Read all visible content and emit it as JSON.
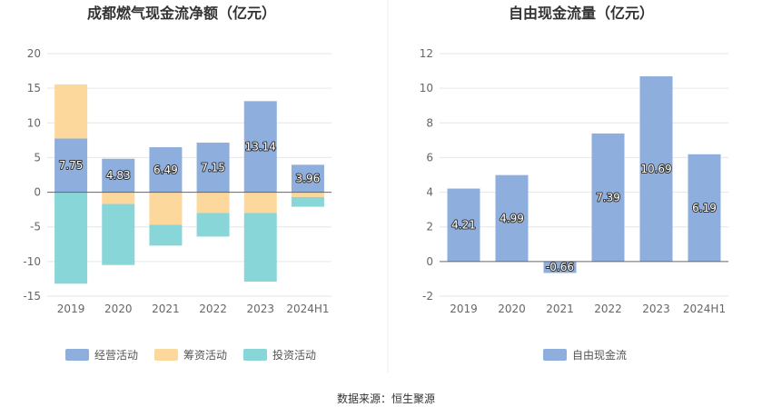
{
  "source_text": "数据来源：恒生聚源",
  "chart_data": [
    {
      "type": "bar",
      "stacked": true,
      "title": "成都燃气现金流净额（亿元）",
      "categories": [
        "2019",
        "2020",
        "2021",
        "2022",
        "2023",
        "2024H1"
      ],
      "ylim": [
        -15,
        20
      ],
      "yticks": [
        -15,
        -10,
        -5,
        0,
        5,
        10,
        15,
        20
      ],
      "grid": true,
      "legend_position": "bottom",
      "series": [
        {
          "name": "经营活动",
          "color": "#8eaedd",
          "values": [
            7.75,
            4.83,
            6.49,
            7.15,
            13.14,
            3.96
          ],
          "show_labels": true
        },
        {
          "name": "筹资活动",
          "color": "#fdd89c",
          "values": [
            7.8,
            -1.7,
            -4.7,
            -3.0,
            -3.0,
            -0.7
          ],
          "show_labels": false
        },
        {
          "name": "投资活动",
          "color": "#88d6d8",
          "values": [
            -13.2,
            -8.8,
            -3.0,
            -3.4,
            -9.9,
            -1.4
          ],
          "show_labels": false
        }
      ]
    },
    {
      "type": "bar",
      "title": "自由现金流量（亿元）",
      "categories": [
        "2019",
        "2020",
        "2021",
        "2022",
        "2023",
        "2024H1"
      ],
      "ylim": [
        -2,
        12
      ],
      "yticks": [
        -2,
        0,
        2,
        4,
        6,
        8,
        10,
        12
      ],
      "grid": true,
      "legend_position": "bottom",
      "series": [
        {
          "name": "自由现金流",
          "color": "#8eaedd",
          "values": [
            4.21,
            4.99,
            -0.66,
            7.39,
            10.69,
            6.19
          ],
          "show_labels": true
        }
      ]
    }
  ]
}
